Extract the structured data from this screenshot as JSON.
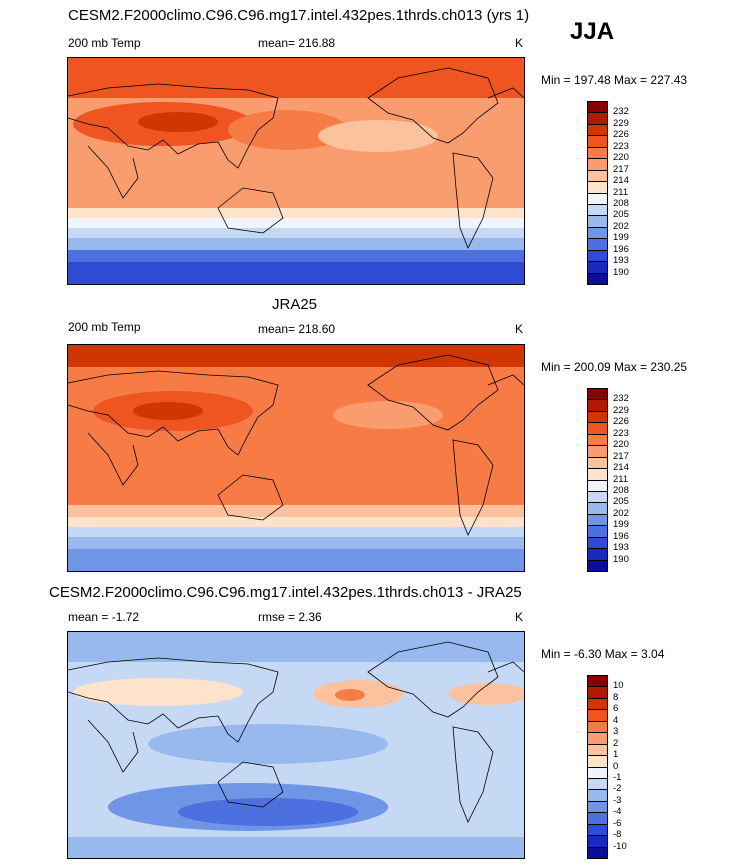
{
  "season": "JJA",
  "chart_data": [
    {
      "type": "heatmap",
      "title": "CESM2.F2000climo.C96.C96.mg17.intel.432pes.1thrds.ch013 (yrs 1)",
      "left_label": "200 mb Temp",
      "center_label": "mean= 216.88",
      "units": "K",
      "minmax": "Min = 197.48 Max = 227.43",
      "colorbar_ticks": [
        "232",
        "229",
        "226",
        "223",
        "220",
        "217",
        "214",
        "211",
        "208",
        "205",
        "202",
        "199",
        "196",
        "193",
        "190"
      ],
      "colors": [
        "#8a0000",
        "#b11a00",
        "#d23600",
        "#ef5520",
        "#f77b45",
        "#fa9d6e",
        "#fcc29d",
        "#fde2cc",
        "#f2f4fb",
        "#c6d9f4",
        "#98b9ee",
        "#6f95e6",
        "#4c70df",
        "#2f4bd6",
        "#1a2abd",
        "#0a0f9a"
      ]
    },
    {
      "type": "heatmap",
      "title": "JRA25",
      "left_label": "200 mb Temp",
      "center_label": "mean= 218.60",
      "units": "K",
      "minmax": "Min = 200.09 Max = 230.25",
      "colorbar_ticks": [
        "232",
        "229",
        "226",
        "223",
        "220",
        "217",
        "214",
        "211",
        "208",
        "205",
        "202",
        "199",
        "196",
        "193",
        "190"
      ],
      "colors": [
        "#8a0000",
        "#b11a00",
        "#d23600",
        "#ef5520",
        "#f77b45",
        "#fa9d6e",
        "#fcc29d",
        "#fde2cc",
        "#f2f4fb",
        "#c6d9f4",
        "#98b9ee",
        "#6f95e6",
        "#4c70df",
        "#2f4bd6",
        "#1a2abd",
        "#0a0f9a"
      ]
    },
    {
      "type": "heatmap",
      "title": "CESM2.F2000climo.C96.C96.mg17.intel.432pes.1thrds.ch013 - JRA25",
      "left_label": "mean =  -1.72",
      "center_label": "rmse =   2.36",
      "units": "K",
      "minmax": "Min =  -6.30 Max =   3.04",
      "colorbar_ticks": [
        "10",
        "8",
        "6",
        "4",
        "3",
        "2",
        "1",
        "0",
        "-1",
        "-2",
        "-3",
        "-4",
        "-6",
        "-8",
        "-10"
      ],
      "colors": [
        "#8a0000",
        "#b11a00",
        "#d23600",
        "#ef5520",
        "#f77b45",
        "#fa9d6e",
        "#fcc29d",
        "#fde2cc",
        "#f2f4fb",
        "#c6d9f4",
        "#98b9ee",
        "#6f95e6",
        "#4c70df",
        "#2f4bd6",
        "#1a2abd",
        "#0a0f9a"
      ]
    }
  ]
}
